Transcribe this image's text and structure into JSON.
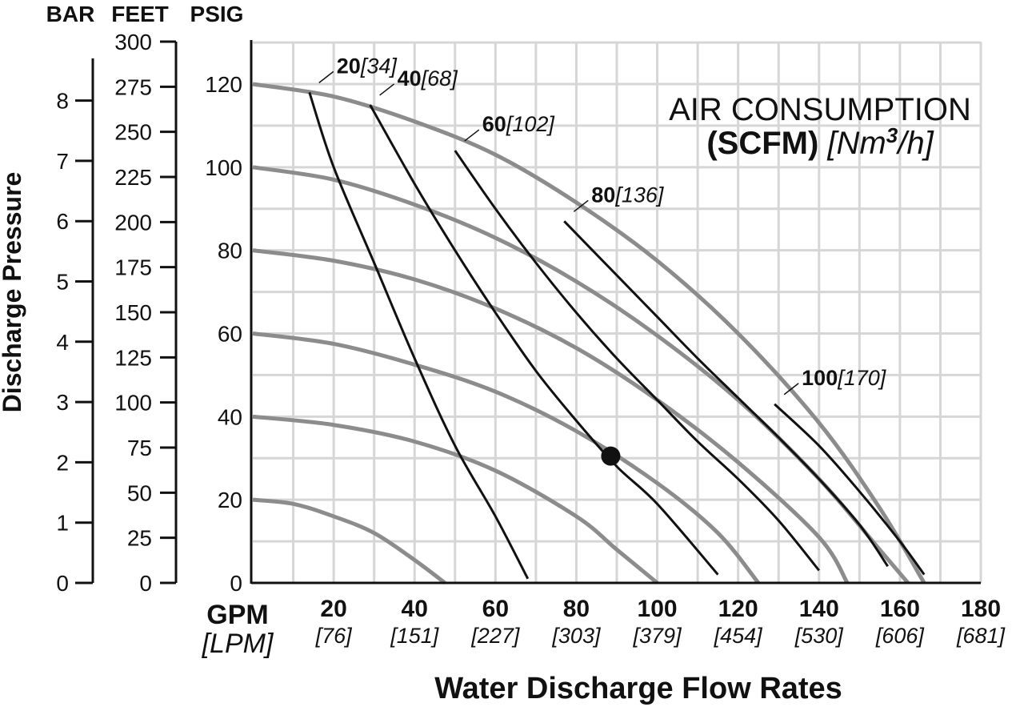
{
  "chart_data": {
    "type": "line",
    "title_line1": "AIR CONSUMPTION",
    "title_bold": "(SCFM)",
    "title_italic": "[Nm",
    "title_sup": "3",
    "title_italic_end": "/h]",
    "xlabel": "Water Discharge Flow Rates",
    "xunit": "GPM",
    "xunit_alt": "[LPM]",
    "ylabel": "Discharge Pressure",
    "xlim": [
      0,
      180
    ],
    "ylim": [
      0,
      130
    ],
    "x_ticks": [
      {
        "label": "20",
        "sub": "[76]"
      },
      {
        "label": "40",
        "sub": "[151]"
      },
      {
        "label": "60",
        "sub": "[227]"
      },
      {
        "label": "80",
        "sub": "[303]"
      },
      {
        "label": "100",
        "sub": "[379]"
      },
      {
        "label": "120",
        "sub": "[454]"
      },
      {
        "label": "140",
        "sub": "[530]"
      },
      {
        "label": "160",
        "sub": "[606]"
      },
      {
        "label": "180",
        "sub": "[681]"
      }
    ],
    "psig_axis": {
      "header": "PSIG",
      "ticks": [
        "0",
        "20",
        "40",
        "60",
        "80",
        "100",
        "120"
      ]
    },
    "feet_axis": {
      "header": "FEET",
      "ticks": [
        "0",
        "25",
        "50",
        "75",
        "100",
        "125",
        "150",
        "175",
        "200",
        "225",
        "250",
        "275",
        "300"
      ]
    },
    "bar_axis": {
      "header": "BAR",
      "ticks": [
        "0",
        "1",
        "2",
        "3",
        "4",
        "5",
        "6",
        "7",
        "8"
      ]
    },
    "pressure_series": [
      {
        "psig": 20,
        "points": [
          [
            0,
            20
          ],
          [
            10,
            19
          ],
          [
            20,
            16
          ],
          [
            30,
            12
          ],
          [
            40,
            5.5
          ],
          [
            47.5,
            0
          ]
        ]
      },
      {
        "psig": 40,
        "points": [
          [
            0,
            40
          ],
          [
            20,
            38
          ],
          [
            40,
            34
          ],
          [
            60,
            27
          ],
          [
            80,
            16
          ],
          [
            90,
            8
          ],
          [
            100,
            0
          ]
        ]
      },
      {
        "psig": 60,
        "points": [
          [
            0,
            60
          ],
          [
            20,
            57.5
          ],
          [
            40,
            52.5
          ],
          [
            60,
            46
          ],
          [
            80,
            36.5
          ],
          [
            100,
            24
          ],
          [
            115,
            12
          ],
          [
            125,
            0
          ]
        ]
      },
      {
        "psig": 80,
        "points": [
          [
            0,
            80
          ],
          [
            20,
            77.5
          ],
          [
            40,
            73
          ],
          [
            60,
            66
          ],
          [
            80,
            56.5
          ],
          [
            100,
            44
          ],
          [
            120,
            29
          ],
          [
            140,
            11
          ],
          [
            147,
            0
          ]
        ]
      },
      {
        "psig": 100,
        "points": [
          [
            0,
            100
          ],
          [
            20,
            97
          ],
          [
            40,
            91
          ],
          [
            60,
            83
          ],
          [
            80,
            72.5
          ],
          [
            100,
            59.5
          ],
          [
            120,
            44
          ],
          [
            140,
            25
          ],
          [
            155,
            8
          ],
          [
            162,
            0
          ]
        ]
      },
      {
        "psig": 120,
        "points": [
          [
            0,
            120
          ],
          [
            20,
            117
          ],
          [
            40,
            111
          ],
          [
            60,
            103
          ],
          [
            80,
            91.5
          ],
          [
            100,
            77.5
          ],
          [
            120,
            60
          ],
          [
            140,
            38.5
          ],
          [
            155,
            18
          ],
          [
            166,
            0
          ]
        ]
      }
    ],
    "air_series": [
      {
        "label": "20",
        "sub": "[34]",
        "points": [
          [
            14,
            118
          ],
          [
            20,
            100
          ],
          [
            30,
            77
          ],
          [
            40,
            54
          ],
          [
            50,
            33
          ],
          [
            60,
            16
          ],
          [
            68,
            1
          ]
        ]
      },
      {
        "label": "40",
        "sub": "[68]",
        "points": [
          [
            29,
            115
          ],
          [
            40,
            96
          ],
          [
            50,
            80
          ],
          [
            60,
            65
          ],
          [
            70,
            51
          ],
          [
            80,
            39
          ],
          [
            90,
            28
          ],
          [
            100,
            19
          ],
          [
            115,
            2
          ]
        ]
      },
      {
        "label": "60",
        "sub": "[102]",
        "points": [
          [
            50,
            104
          ],
          [
            60,
            90
          ],
          [
            70,
            77
          ],
          [
            80,
            65
          ],
          [
            90,
            54
          ],
          [
            100,
            44
          ],
          [
            110,
            34
          ],
          [
            120,
            25
          ],
          [
            130,
            15
          ],
          [
            140,
            3
          ]
        ]
      },
      {
        "label": "80",
        "sub": "[136]",
        "points": [
          [
            77,
            87
          ],
          [
            90,
            74
          ],
          [
            100,
            64
          ],
          [
            110,
            54
          ],
          [
            120,
            44.5
          ],
          [
            130,
            35
          ],
          [
            140,
            25
          ],
          [
            150,
            14
          ],
          [
            157,
            4
          ]
        ]
      },
      {
        "label": "100",
        "sub": "[170]",
        "points": [
          [
            129,
            43
          ],
          [
            140,
            33
          ],
          [
            150,
            22
          ],
          [
            160,
            10
          ],
          [
            166,
            2
          ]
        ]
      }
    ],
    "marker": {
      "x": 88.5,
      "y": 30.5
    },
    "legend": "none",
    "grid": true
  }
}
